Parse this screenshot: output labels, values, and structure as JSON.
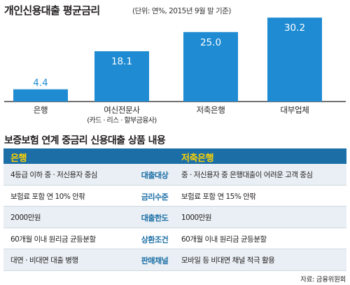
{
  "chart_data": {
    "type": "bar",
    "title": "개인신용대출 평균금리",
    "subtitle": "(단위: 연%, 2015년 9월 말 기준)",
    "categories": [
      "은행",
      "여신전문사",
      "저축은행",
      "대부업체"
    ],
    "category_sublabels": [
      "",
      "(카드 · 리스 · 할부금융사)",
      "",
      ""
    ],
    "values": [
      4.4,
      18.1,
      25.0,
      30.2
    ],
    "value_labels": [
      "4.4",
      "18.1",
      "25.0",
      "30.2"
    ],
    "ylim": [
      0,
      32
    ],
    "bar_color": "#1f8bd2",
    "grid": false,
    "legend": "none"
  },
  "table": {
    "title": "보증보험 연계 중금리 신용대출 상품 내용",
    "header_left": "은행",
    "header_right": "저축은행",
    "header_bg": "#1c6fa6",
    "header_text_color": "#ffd200",
    "rows": [
      {
        "left": "4등급 이하 중 · 저신용자 중심",
        "label": "대출대상",
        "right": "중 · 저신용자 중 은행대출이 어려운 고객 중심"
      },
      {
        "left": "보험료 포함 연 10% 안팎",
        "label": "금리수준",
        "right": "보험료 포함 연 15% 안팎"
      },
      {
        "left": "2000만원",
        "label": "대출한도",
        "right": "1000만원"
      },
      {
        "left": "60개월 이내 원리금 균등분할",
        "label": "상환조건",
        "right": "60개월 이내 원리금 균등분할"
      },
      {
        "left": "대면 · 비대면 대출 병행",
        "label": "판매채널",
        "right": "모바일 등 비대면 채널 적극 활용"
      }
    ]
  },
  "source": "자료: 금융위원회"
}
